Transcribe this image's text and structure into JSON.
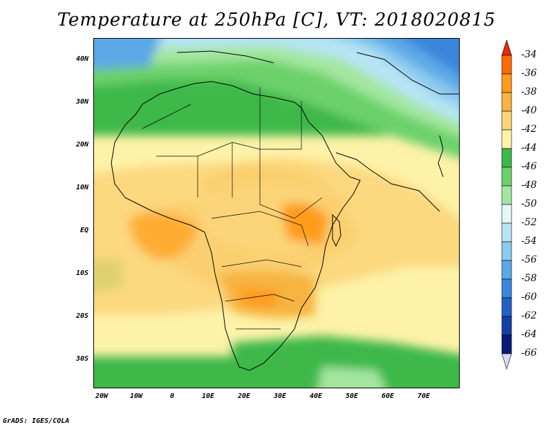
{
  "title": "Temperature at 250hPa [C], VT: 2018020815",
  "credit": "GrADS: IGES/COLA",
  "axes": {
    "lat_labels": [
      "40N",
      "30N",
      "20N",
      "10N",
      "EQ",
      "10S",
      "20S",
      "30S"
    ],
    "lon_labels": [
      "20W",
      "10W",
      "0",
      "10E",
      "20E",
      "30E",
      "40E",
      "50E",
      "60E",
      "70E"
    ]
  },
  "colorbar": {
    "labels": [
      "-34",
      "-36",
      "-38",
      "-40",
      "-42",
      "-44",
      "-46",
      "-48",
      "-50",
      "-52",
      "-54",
      "-56",
      "-58",
      "-60",
      "-62",
      "-64",
      "-66"
    ],
    "colors": [
      "#e8280a",
      "#ff6a00",
      "#ff9c1a",
      "#f7b440",
      "#fcd478",
      "#fdf2a8",
      "#3cb84a",
      "#6cd16a",
      "#a4e6a0",
      "#e6f8f6",
      "#b8e4f4",
      "#8ccaf0",
      "#5ca8e6",
      "#3a86dc",
      "#2262c4",
      "#1442a4",
      "#0a1a78"
    ],
    "top_arrow_color": "#e8280a",
    "bottom_arrow_color": "#d8d8f8"
  }
}
